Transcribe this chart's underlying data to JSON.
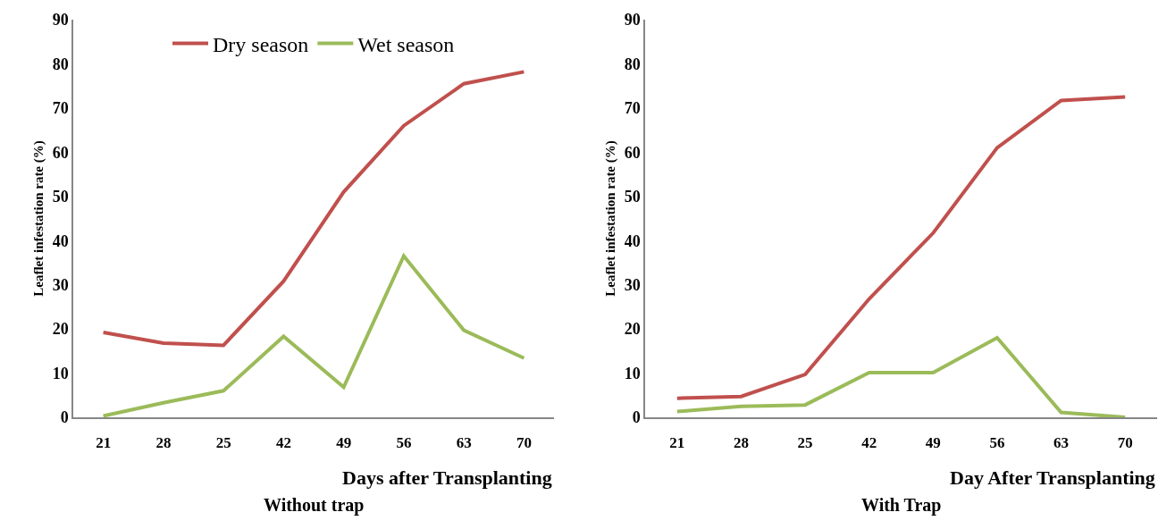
{
  "chart_data": [
    {
      "type": "line",
      "title": "Without trap",
      "xlabel": "Days after Transplanting",
      "ylabel": "Leaflet infestation rate (%)",
      "categories": [
        "21",
        "28",
        "25",
        "42",
        "49",
        "56",
        "63",
        "70"
      ],
      "ylim": [
        0,
        90
      ],
      "yticks": [
        0,
        10,
        20,
        30,
        40,
        50,
        60,
        70,
        80,
        90
      ],
      "grid": false,
      "legend": "top",
      "marker": "none",
      "line_style": "solid",
      "series": [
        {
          "name": "Dry season",
          "color": "#c0504d",
          "values": [
            19.2,
            16.8,
            16.3,
            30.8,
            51,
            66,
            75.5,
            78.2
          ]
        },
        {
          "name": "Wet season",
          "color": "#9bbb59",
          "values": [
            0.3,
            3.3,
            6,
            18.3,
            6.8,
            36.5,
            19.7,
            13.4
          ]
        }
      ]
    },
    {
      "type": "line",
      "title": "With Trap",
      "xlabel": "Day After Transplanting",
      "ylabel": "Leaflet infestation rate (%)",
      "categories": [
        "21",
        "28",
        "25",
        "42",
        "49",
        "56",
        "63",
        "70"
      ],
      "ylim": [
        0,
        90
      ],
      "yticks": [
        0,
        10,
        20,
        30,
        40,
        50,
        60,
        70,
        80,
        90
      ],
      "grid": false,
      "legend": false,
      "marker": "none",
      "line_style": "solid",
      "series": [
        {
          "color": "#c0504d",
          "values": [
            4.3,
            4.7,
            9.7,
            26.8,
            41.7,
            61,
            71.7,
            72.5
          ]
        },
        {
          "color": "#9bbb59",
          "values": [
            1.3,
            2.5,
            2.8,
            10.1,
            10.1,
            18,
            1.1,
            0
          ]
        }
      ]
    }
  ]
}
